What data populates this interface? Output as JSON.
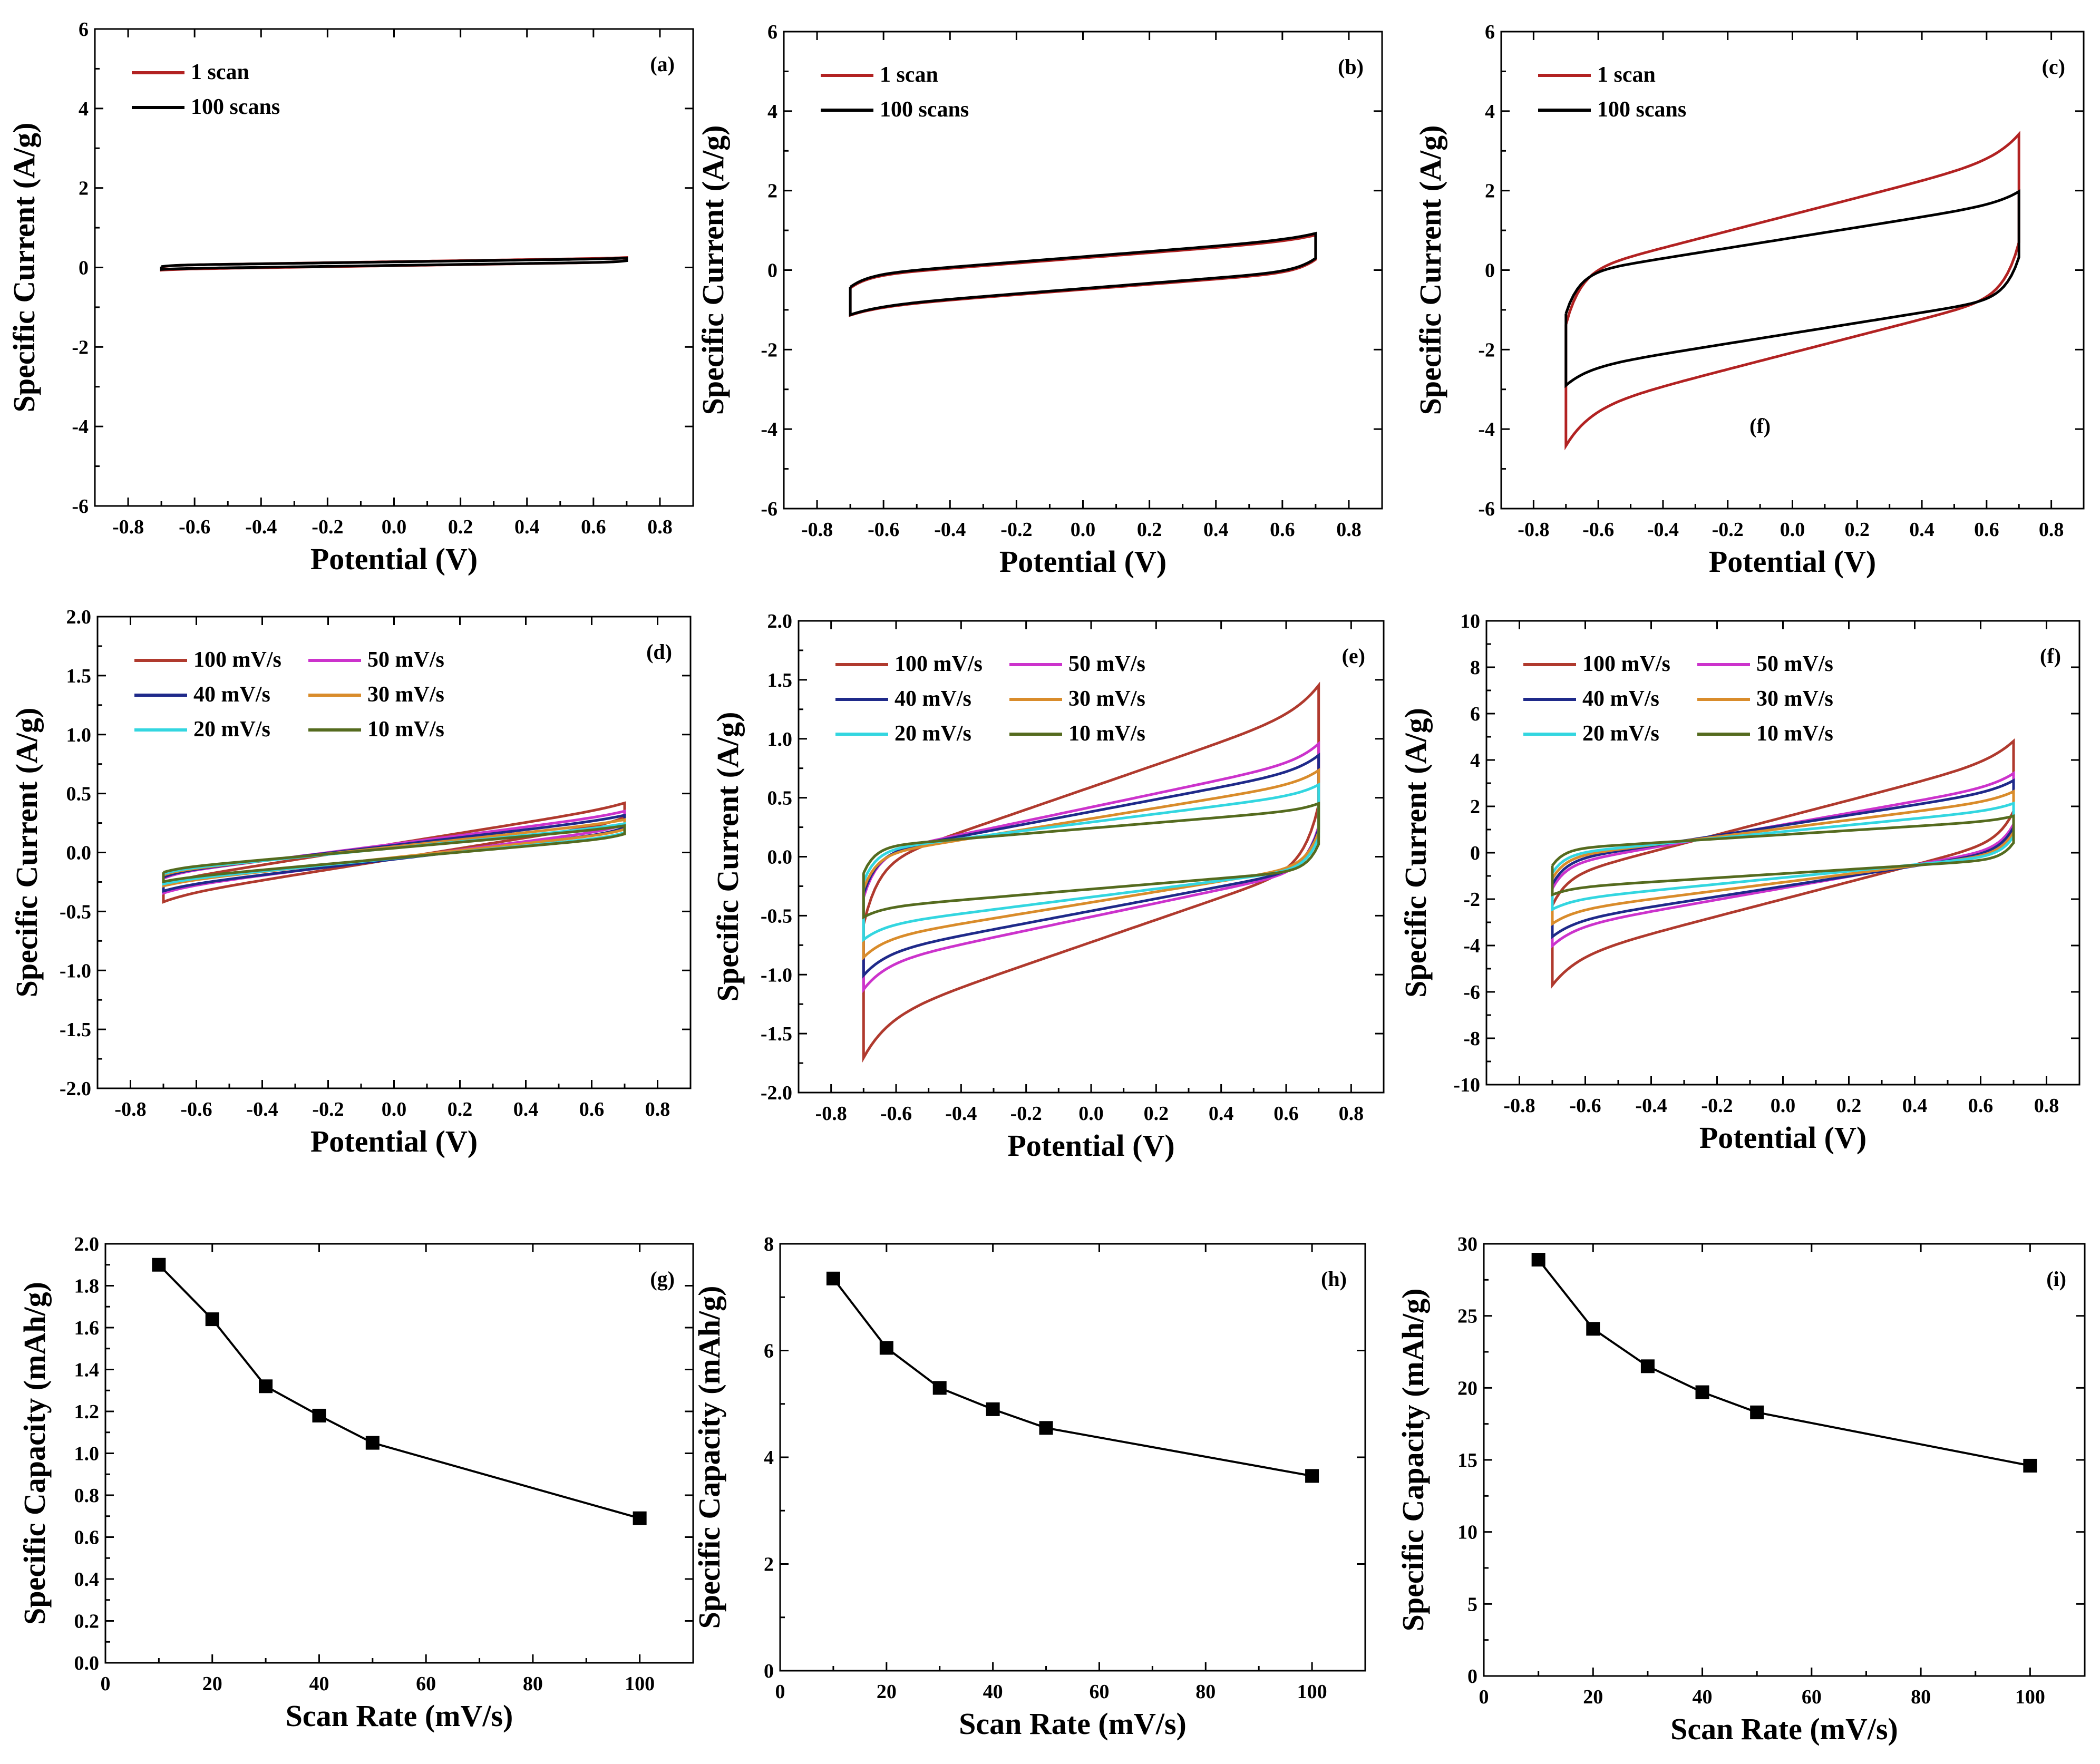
{
  "figure": {
    "colors": {
      "scan1": "#b22222",
      "scan100": "#000000",
      "r100": "#b03a2e",
      "r50": "#cc33cc",
      "r40": "#1f2a8a",
      "r30": "#d98c2b",
      "r20": "#33d6e0",
      "r10": "#556b1f"
    }
  },
  "chart_data": [
    {
      "id": "a",
      "type": "line",
      "panel_label": "(a)",
      "xlabel": "Potential (V)",
      "ylabel": "Specific Current (A/g)",
      "xlim": [
        -0.9,
        0.9
      ],
      "ylim": [
        -6,
        6
      ],
      "xticks": [
        -0.8,
        -0.6,
        -0.4,
        -0.2,
        0.0,
        0.2,
        0.4,
        0.6,
        0.8
      ],
      "xtick_labels": [
        "-0.8",
        "-0.6",
        "-0.4",
        "-0.2",
        "0.0",
        "0.2",
        "0.4",
        "0.6",
        "0.8"
      ],
      "yticks": [
        -6,
        -4,
        -2,
        0,
        2,
        4,
        6
      ],
      "ytick_labels": [
        "-6",
        "-4",
        "-2",
        "0",
        "2",
        "4",
        "6"
      ],
      "legend_position": "top-left",
      "series": [
        {
          "name": "1 scan",
          "color_key": "scan1",
          "shape": {
            "kind": "cv",
            "a": 0.1,
            "b": 0.13,
            "c": 0.06,
            "d": 0.04,
            "k": 30
          }
        },
        {
          "name": "100 scans",
          "color_key": "scan100",
          "shape": {
            "kind": "cv",
            "a": 0.1,
            "b": 0.12,
            "c": 0.05,
            "d": 0.035,
            "k": 30
          }
        }
      ]
    },
    {
      "id": "b",
      "type": "line",
      "panel_label": "(b)",
      "xlabel": "Potential (V)",
      "ylabel": "Specific Current (A/g)",
      "xlim": [
        -0.9,
        0.9
      ],
      "ylim": [
        -6,
        6
      ],
      "xticks": [
        -0.8,
        -0.6,
        -0.4,
        -0.2,
        0.0,
        0.2,
        0.4,
        0.6,
        0.8
      ],
      "xtick_labels": [
        "-0.8",
        "-0.6",
        "-0.4",
        "-0.2",
        "0.0",
        "0.2",
        "0.4",
        "0.6",
        "0.8"
      ],
      "yticks": [
        -6,
        -4,
        -2,
        0,
        2,
        4,
        6
      ],
      "ytick_labels": [
        "-6",
        "-4",
        "-2",
        "0",
        "2",
        "4",
        "6"
      ],
      "legend_position": "top-left",
      "series": [
        {
          "name": "1 scan",
          "color_key": "scan1",
          "shape": {
            "kind": "cv",
            "a": -0.05,
            "b": 0.65,
            "c": 0.55,
            "d": 0.3,
            "k": 18
          }
        },
        {
          "name": "100 scans",
          "color_key": "scan100",
          "shape": {
            "kind": "cv",
            "a": -0.02,
            "b": 0.66,
            "c": 0.57,
            "d": 0.3,
            "k": 18
          }
        }
      ]
    },
    {
      "id": "c",
      "type": "line",
      "panel_label": "(c)",
      "xlabel": "Potential (V)",
      "ylabel": "Specific Current (A/g)",
      "xlim": [
        -0.9,
        0.9
      ],
      "ylim": [
        -6,
        6
      ],
      "xticks": [
        -0.8,
        -0.6,
        -0.4,
        -0.2,
        0.0,
        0.2,
        0.4,
        0.6,
        0.8
      ],
      "xtick_labels": [
        "-0.8",
        "-0.6",
        "-0.4",
        "-0.2",
        "0.0",
        "0.2",
        "0.4",
        "0.6",
        "0.8"
      ],
      "yticks": [
        -6,
        -4,
        -2,
        0,
        2,
        4,
        6
      ],
      "ytick_labels": [
        "-6",
        "-4",
        "-2",
        "0",
        "2",
        "4",
        "6"
      ],
      "legend_position": "top-left",
      "annotation": {
        "text": "(f)",
        "x": -0.1,
        "y": -4.1
      },
      "series": [
        {
          "name": "1 scan",
          "color_key": "scan1",
          "shape": {
            "kind": "cv",
            "a": -0.15,
            "b": 2.1,
            "c": 2.5,
            "d": 1.3,
            "k": 22
          }
        },
        {
          "name": "100 scans",
          "color_key": "scan100",
          "shape": {
            "kind": "cv",
            "a": -0.3,
            "b": 1.3,
            "c": 1.15,
            "d": 1.0,
            "k": 24
          }
        }
      ]
    },
    {
      "id": "d",
      "type": "line",
      "panel_label": "(d)",
      "xlabel": "Potential (V)",
      "ylabel": "Specific Current (A/g)",
      "xlim": [
        -0.9,
        0.9
      ],
      "ylim": [
        -2.0,
        2.0
      ],
      "xticks": [
        -0.8,
        -0.6,
        -0.4,
        -0.2,
        0.0,
        0.2,
        0.4,
        0.6,
        0.8
      ],
      "xtick_labels": [
        "-0.8",
        "-0.6",
        "-0.4",
        "-0.2",
        "0.0",
        "0.2",
        "0.4",
        "0.6",
        "0.8"
      ],
      "yticks": [
        -2.0,
        -1.5,
        -1.0,
        -0.5,
        0.0,
        0.5,
        1.0,
        1.5,
        2.0
      ],
      "ytick_labels": [
        "-2.0",
        "-1.5",
        "-1.0",
        "-0.5",
        "0.0",
        "0.5",
        "1.0",
        "1.5",
        "2.0"
      ],
      "legend_position": "top-left",
      "series": [
        {
          "name": "100 mV/s",
          "color_key": "r100",
          "shape": {
            "kind": "cv",
            "a": 0.02,
            "b": 0.45,
            "c": 0.14,
            "d": 0.04,
            "k": 20
          }
        },
        {
          "name": "50 mV/s",
          "color_key": "r50",
          "shape": {
            "kind": "cv",
            "a": 0.02,
            "b": 0.36,
            "c": 0.12,
            "d": 0.04,
            "k": 20
          }
        },
        {
          "name": "40 mV/s",
          "color_key": "r40",
          "shape": {
            "kind": "cv",
            "a": 0.01,
            "b": 0.33,
            "c": 0.11,
            "d": 0.04,
            "k": 20
          }
        },
        {
          "name": "30 mV/s",
          "color_key": "r30",
          "shape": {
            "kind": "cv",
            "a": 0.01,
            "b": 0.3,
            "c": 0.09,
            "d": 0.03,
            "k": 20
          }
        },
        {
          "name": "20 mV/s",
          "color_key": "r20",
          "shape": {
            "kind": "cv",
            "a": 0.0,
            "b": 0.27,
            "c": 0.08,
            "d": 0.03,
            "k": 20
          }
        },
        {
          "name": "10 mV/s",
          "color_key": "r10",
          "shape": {
            "kind": "cv",
            "a": 0.0,
            "b": 0.25,
            "c": 0.07,
            "d": 0.03,
            "k": 20
          }
        }
      ]
    },
    {
      "id": "e",
      "type": "line",
      "panel_label": "(e)",
      "xlabel": "Potential (V)",
      "ylabel": "Specific Current (A/g)",
      "xlim": [
        -0.9,
        0.9
      ],
      "ylim": [
        -2.0,
        2.0
      ],
      "xticks": [
        -0.8,
        -0.6,
        -0.4,
        -0.2,
        0.0,
        0.2,
        0.4,
        0.6,
        0.8
      ],
      "xtick_labels": [
        "-0.8",
        "-0.6",
        "-0.4",
        "-0.2",
        "0.0",
        "0.2",
        "0.4",
        "0.6",
        "0.8"
      ],
      "yticks": [
        -2.0,
        -1.5,
        -1.0,
        -0.5,
        0.0,
        0.5,
        1.0,
        1.5,
        2.0
      ],
      "ytick_labels": [
        "-2.0",
        "-1.5",
        "-1.0",
        "-0.5",
        "0.0",
        "0.5",
        "1.0",
        "1.5",
        "2.0"
      ],
      "legend_position": "top-left",
      "series": [
        {
          "name": "100 mV/s",
          "color_key": "r100",
          "shape": {
            "kind": "cv",
            "a": 0.0,
            "b": 0.95,
            "c": 0.9,
            "d": 0.5,
            "k": 22
          }
        },
        {
          "name": "50 mV/s",
          "color_key": "r50",
          "shape": {
            "kind": "cv",
            "a": 0.0,
            "b": 0.58,
            "c": 0.6,
            "d": 0.36,
            "k": 24
          }
        },
        {
          "name": "40 mV/s",
          "color_key": "r40",
          "shape": {
            "kind": "cv",
            "a": 0.0,
            "b": 0.52,
            "c": 0.52,
            "d": 0.33,
            "k": 24
          }
        },
        {
          "name": "30 mV/s",
          "color_key": "r30",
          "shape": {
            "kind": "cv",
            "a": 0.0,
            "b": 0.45,
            "c": 0.43,
            "d": 0.28,
            "k": 25
          }
        },
        {
          "name": "20 mV/s",
          "color_key": "r20",
          "shape": {
            "kind": "cv",
            "a": 0.0,
            "b": 0.35,
            "c": 0.33,
            "d": 0.26,
            "k": 26
          }
        },
        {
          "name": "10 mV/s",
          "color_key": "r10",
          "shape": {
            "kind": "cv",
            "a": 0.0,
            "b": 0.23,
            "c": 0.22,
            "d": 0.22,
            "k": 28
          }
        }
      ]
    },
    {
      "id": "f",
      "type": "line",
      "panel_label": "(f)",
      "xlabel": "Potential (V)",
      "ylabel": "Specific Current (A/g)",
      "xlim": [
        -0.9,
        0.9
      ],
      "ylim": [
        -10,
        10
      ],
      "xticks": [
        -0.8,
        -0.6,
        -0.4,
        -0.2,
        0.0,
        0.2,
        0.4,
        0.6,
        0.8
      ],
      "xtick_labels": [
        "-0.8",
        "-0.6",
        "-0.4",
        "-0.2",
        "0.0",
        "0.2",
        "0.4",
        "0.6",
        "0.8"
      ],
      "yticks": [
        -10,
        -8,
        -6,
        -4,
        -2,
        0,
        2,
        4,
        6,
        8,
        10
      ],
      "ytick_labels": [
        "-10",
        "-8",
        "-6",
        "-4",
        "-2",
        "0",
        "2",
        "4",
        "6",
        "8",
        "10"
      ],
      "legend_position": "top-left",
      "series": [
        {
          "name": "100 mV/s",
          "color_key": "r100",
          "shape": {
            "kind": "cv",
            "a": 0.0,
            "b": 3.7,
            "c": 3.2,
            "d": 1.2,
            "k": 22
          }
        },
        {
          "name": "50 mV/s",
          "color_key": "r50",
          "shape": {
            "kind": "cv",
            "a": 0.0,
            "b": 2.5,
            "c": 2.1,
            "d": 1.0,
            "k": 24
          }
        },
        {
          "name": "40 mV/s",
          "color_key": "r40",
          "shape": {
            "kind": "cv",
            "a": 0.0,
            "b": 2.2,
            "c": 1.8,
            "d": 1.0,
            "k": 24
          }
        },
        {
          "name": "30 mV/s",
          "color_key": "r30",
          "shape": {
            "kind": "cv",
            "a": 0.0,
            "b": 1.8,
            "c": 1.5,
            "d": 0.9,
            "k": 25
          }
        },
        {
          "name": "20 mV/s",
          "color_key": "r20",
          "shape": {
            "kind": "cv",
            "a": 0.0,
            "b": 1.4,
            "c": 1.1,
            "d": 0.8,
            "k": 26
          }
        },
        {
          "name": "10 mV/s",
          "color_key": "r10",
          "shape": {
            "kind": "cv",
            "a": 0.0,
            "b": 0.9,
            "c": 0.8,
            "d": 0.7,
            "k": 28
          }
        }
      ]
    },
    {
      "id": "g",
      "type": "line",
      "panel_label": "(g)",
      "xlabel": "Scan Rate (mV/s)",
      "ylabel": "Specific Capacity (mAh/g)",
      "xlim": [
        0,
        110
      ],
      "ylim": [
        0.0,
        2.0
      ],
      "xticks": [
        0,
        20,
        40,
        60,
        80,
        100
      ],
      "xtick_labels": [
        "0",
        "20",
        "40",
        "60",
        "80",
        "100"
      ],
      "yticks": [
        0.0,
        0.2,
        0.4,
        0.6,
        0.8,
        1.0,
        1.2,
        1.4,
        1.6,
        1.8,
        2.0
      ],
      "ytick_labels": [
        "0.0",
        "0.2",
        "0.4",
        "0.6",
        "0.8",
        "1.0",
        "1.2",
        "1.4",
        "1.6",
        "1.8",
        "2.0"
      ],
      "x": [
        10,
        20,
        30,
        40,
        50,
        100
      ],
      "values": [
        1.9,
        1.64,
        1.32,
        1.18,
        1.05,
        0.69
      ]
    },
    {
      "id": "h",
      "type": "line",
      "panel_label": "(h)",
      "xlabel": "Scan Rate (mV/s)",
      "ylabel": "Specific Capacity (mAh/g)",
      "xlim": [
        0,
        110
      ],
      "ylim": [
        0,
        8
      ],
      "xticks": [
        0,
        20,
        40,
        60,
        80,
        100
      ],
      "xtick_labels": [
        "0",
        "20",
        "40",
        "60",
        "80",
        "100"
      ],
      "yticks": [
        0,
        2,
        4,
        6,
        8
      ],
      "ytick_labels": [
        "0",
        "2",
        "4",
        "6",
        "8"
      ],
      "x": [
        10,
        20,
        30,
        40,
        50,
        100
      ],
      "values": [
        7.35,
        6.05,
        5.3,
        4.9,
        4.55,
        3.65
      ]
    },
    {
      "id": "i",
      "type": "line",
      "panel_label": "(i)",
      "xlabel": "Scan Rate (mV/s)",
      "ylabel": "Specific Capacity (mAh/g)",
      "xlim": [
        0,
        110
      ],
      "ylim": [
        0,
        30
      ],
      "xticks": [
        0,
        20,
        40,
        60,
        80,
        100
      ],
      "xtick_labels": [
        "0",
        "20",
        "40",
        "60",
        "80",
        "100"
      ],
      "yticks": [
        0,
        5,
        10,
        15,
        20,
        25,
        30
      ],
      "ytick_labels": [
        "0",
        "5",
        "10",
        "15",
        "20",
        "25",
        "30"
      ],
      "x": [
        10,
        20,
        30,
        40,
        50,
        100
      ],
      "values": [
        28.9,
        24.1,
        21.5,
        19.7,
        18.3,
        14.6
      ]
    }
  ]
}
